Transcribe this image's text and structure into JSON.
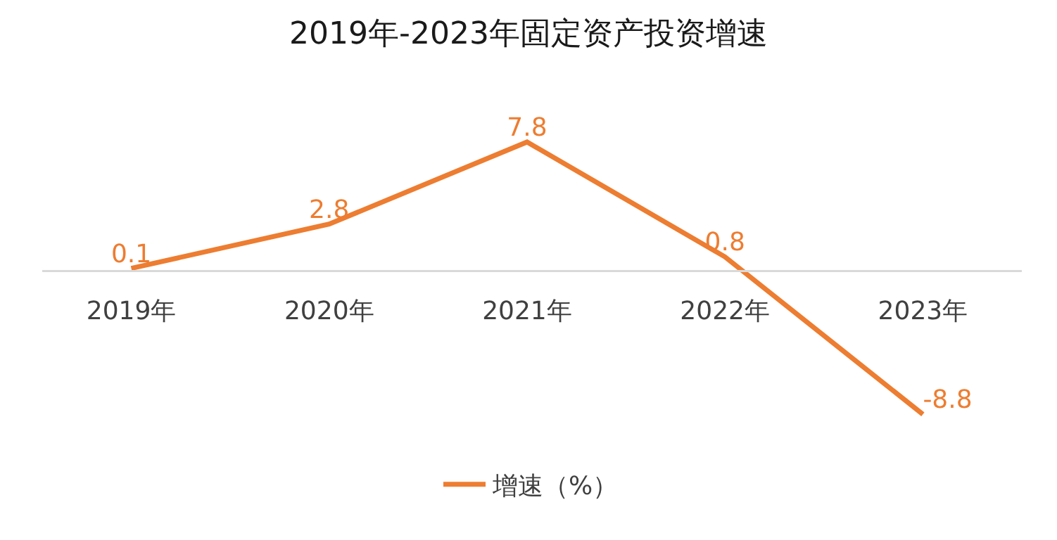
{
  "chart_data": {
    "type": "line",
    "title": "2019年-2023年固定资产投资增速",
    "categories": [
      "2019年",
      "2020年",
      "2021年",
      "2022年",
      "2023年"
    ],
    "series": [
      {
        "name": "增速（%）",
        "color": "#ed7d31",
        "values": [
          0.1,
          2.8,
          7.8,
          0.8,
          -8.8
        ]
      }
    ],
    "data_labels": true,
    "legend": "bottom",
    "grid": false,
    "marker": "none",
    "line_style": "solid"
  }
}
